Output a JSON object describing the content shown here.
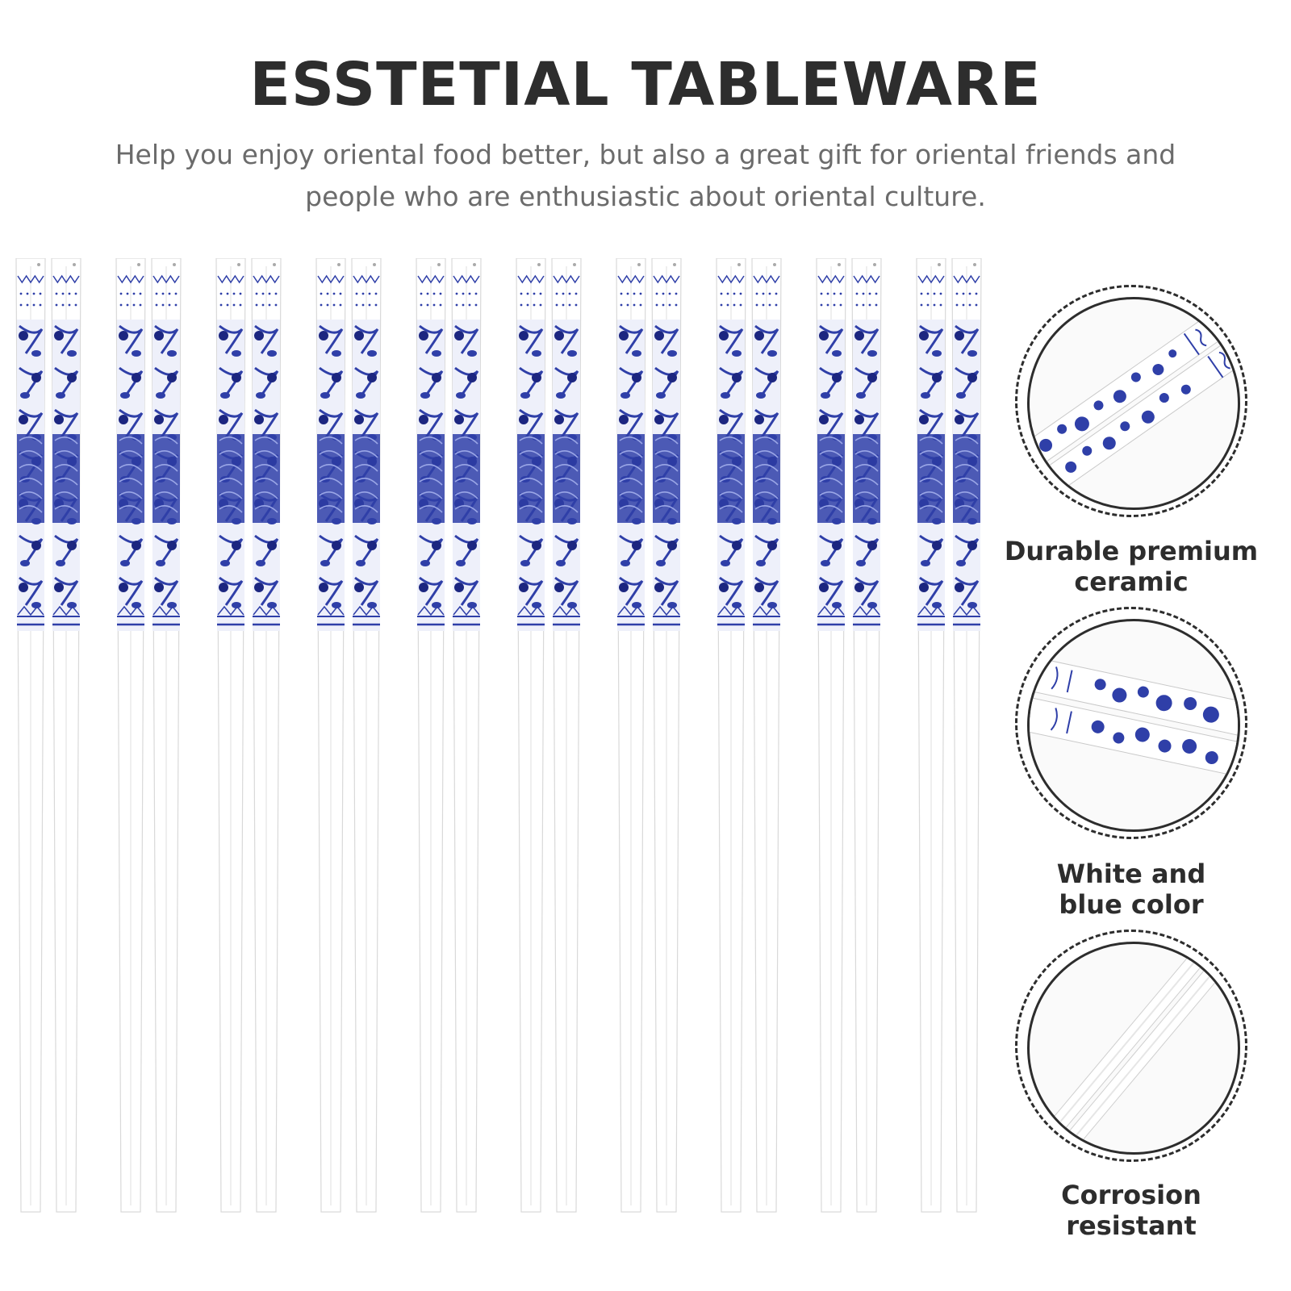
{
  "title": "ESSTETIAL TABLEWARE",
  "subtitle": {
    "line1": "Help you enjoy oriental food better, but also a great gift for oriental friends and",
    "line2": "people who are enthusiastic about oriental culture."
  },
  "product": {
    "pair_count": 10,
    "colors": {
      "porcelain": "#ffffff",
      "blue": "#2f3fa8",
      "dark_blue": "#1c2680",
      "outline": "#2d2d2d"
    }
  },
  "features": [
    {
      "line1": "Durable premium",
      "line2": "ceramic",
      "icon": "ceramic-closeup-icon"
    },
    {
      "line1": "White and",
      "line2": "blue color",
      "icon": "pattern-closeup-icon"
    },
    {
      "line1": "Corrosion",
      "line2": "resistant",
      "icon": "tips-closeup-icon"
    }
  ]
}
